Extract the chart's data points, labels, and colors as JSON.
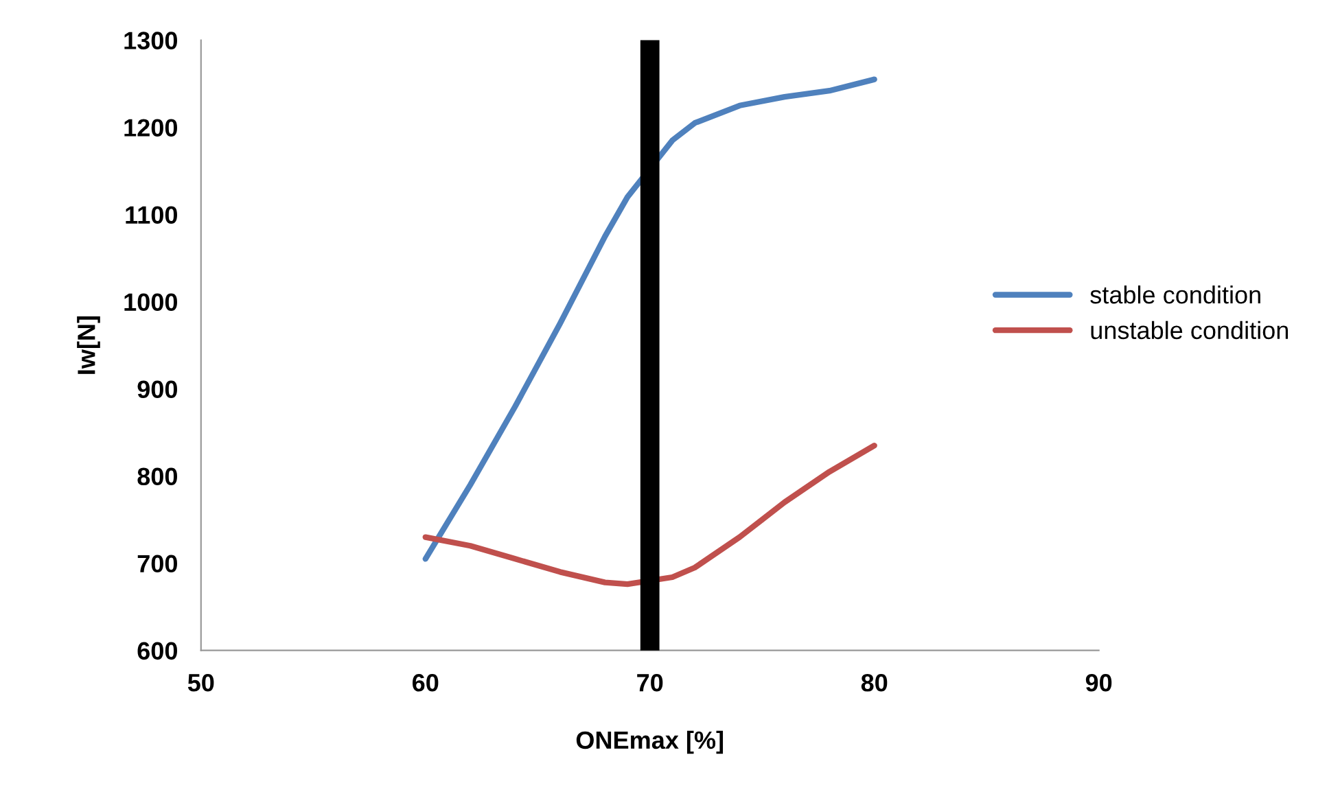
{
  "chart_data": {
    "type": "line",
    "xlabel": "ONEmax [%]",
    "ylabel": "Iw[N]",
    "xlim": [
      50,
      90
    ],
    "xticks": [
      50,
      60,
      70,
      80,
      90
    ],
    "ylim": [
      600,
      1300
    ],
    "yticks": [
      600,
      700,
      800,
      900,
      1000,
      1100,
      1200,
      1300
    ],
    "grid": false,
    "legend": "right",
    "marker": "none",
    "line_style": "solid",
    "series": [
      {
        "name": "stable condition",
        "color": "#4f81bd",
        "x": [
          60,
          62,
          64,
          66,
          68,
          69,
          71,
          72,
          74,
          76,
          78,
          80
        ],
        "values": [
          705,
          790,
          880,
          975,
          1075,
          1120,
          1185,
          1205,
          1225,
          1235,
          1242,
          1255
        ]
      },
      {
        "name": "unstable condition",
        "color": "#c0504d",
        "x": [
          60,
          62,
          64,
          66,
          68,
          69,
          71,
          72,
          74,
          76,
          78,
          80
        ],
        "values": [
          730,
          720,
          705,
          690,
          678,
          676,
          684,
          695,
          730,
          770,
          805,
          835
        ]
      }
    ],
    "ref_lines": [
      {
        "axis": "x",
        "value": 70,
        "color": "#000000",
        "line_style": "solid"
      }
    ]
  }
}
